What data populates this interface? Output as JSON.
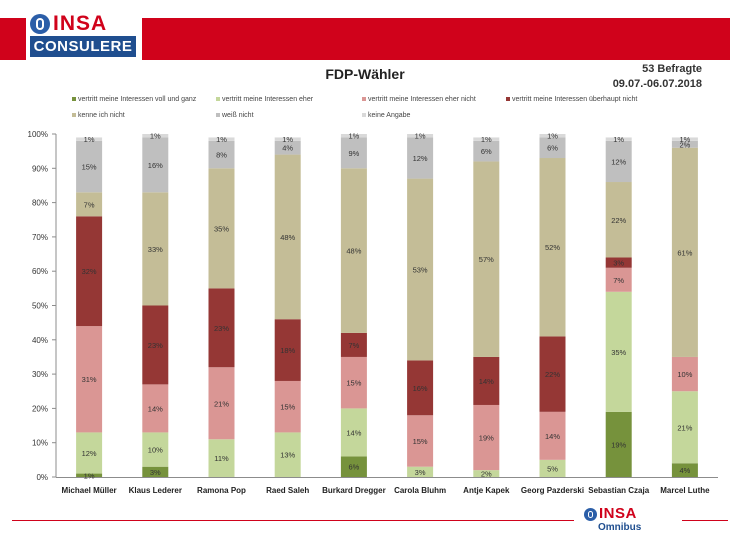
{
  "header": {
    "logo_word": "INSA",
    "logo_sub": "CONSULERE",
    "respondents": "53 Befragte",
    "period": "09.07.-06.07.2018"
  },
  "footer": {
    "logo_word": "INSA",
    "logo_sub": "Omnibus"
  },
  "colors": {
    "brand_red": "#d0021b",
    "brand_blue": "#1f4e8f"
  },
  "chart_data": {
    "type": "bar",
    "stacked": true,
    "title": "FDP-Wähler",
    "xlabel": "",
    "ylabel": "",
    "ylim": [
      0,
      100
    ],
    "y_ticks": [
      "0%",
      "10%",
      "20%",
      "30%",
      "40%",
      "50%",
      "60%",
      "70%",
      "80%",
      "90%",
      "100%"
    ],
    "grid": false,
    "legend_position": "top",
    "categories": [
      "Michael Müller",
      "Klaus Lederer",
      "Ramona Pop",
      "Raed Saleh",
      "Burkard Dregger",
      "Carola Bluhm",
      "Antje Kapek",
      "Georg Pazderski",
      "Sebastian Czaja",
      "Marcel Luthe"
    ],
    "series": [
      {
        "name": "vertritt meine Interessen voll und ganz",
        "color": "#76923c",
        "values": [
          1,
          3,
          0,
          0,
          6,
          0,
          0,
          0,
          19,
          4
        ]
      },
      {
        "name": "vertritt meine Interessen eher",
        "color": "#c4d79b",
        "values": [
          12,
          10,
          11,
          13,
          14,
          3,
          2,
          5,
          35,
          21
        ]
      },
      {
        "name": "vertritt meine Interessen eher nicht",
        "color": "#da9694",
        "values": [
          31,
          14,
          21,
          15,
          15,
          15,
          19,
          14,
          7,
          10
        ]
      },
      {
        "name": "vertritt meine Interessen überhaupt nicht",
        "color": "#953735",
        "values": [
          32,
          23,
          23,
          18,
          7,
          16,
          14,
          22,
          3,
          0
        ]
      },
      {
        "name": "kenne ich nicht",
        "color": "#c4bd97",
        "values": [
          7,
          33,
          35,
          48,
          48,
          53,
          57,
          52,
          22,
          61
        ]
      },
      {
        "name": "weiß nicht",
        "color": "#bfbfbf",
        "values": [
          15,
          16,
          8,
          4,
          9,
          12,
          6,
          6,
          12,
          2
        ]
      },
      {
        "name": "keine Angabe",
        "color": "#d9d9d9",
        "values": [
          1,
          1,
          1,
          1,
          1,
          1,
          1,
          1,
          1,
          1
        ]
      }
    ]
  }
}
